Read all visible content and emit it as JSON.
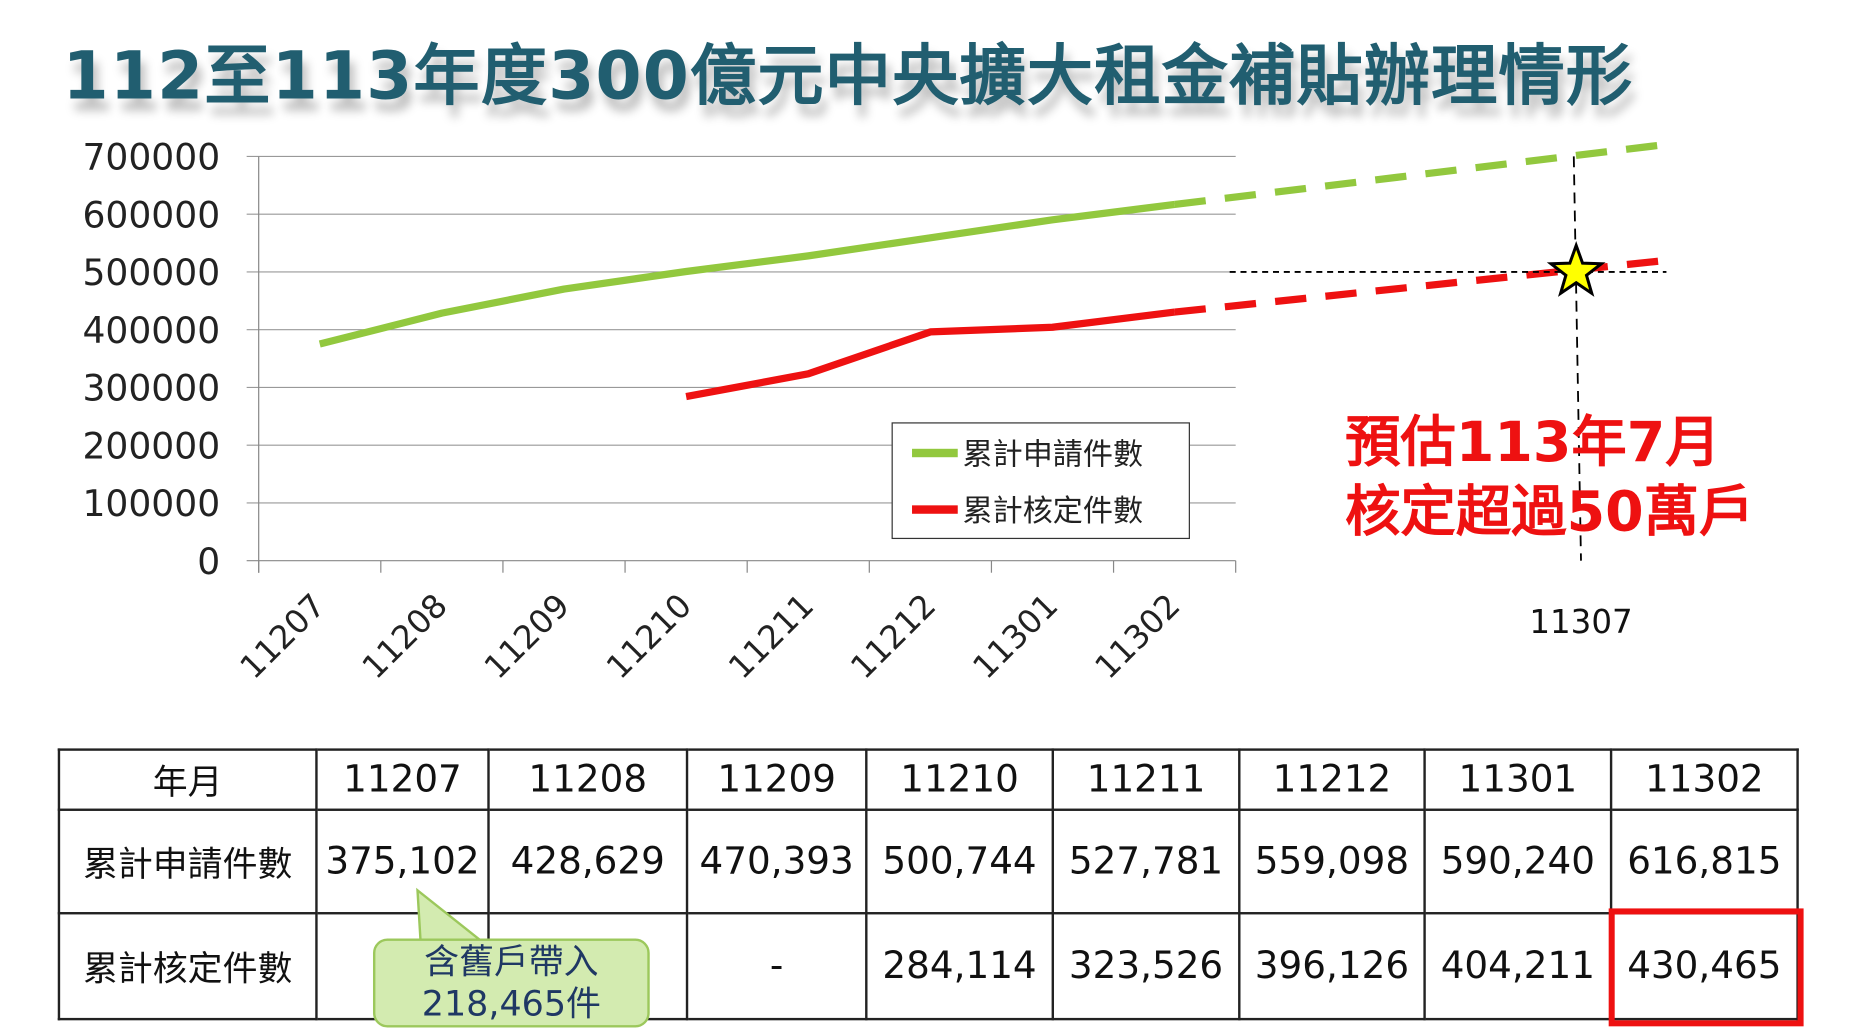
{
  "title": "112至113年度300億元中央擴大租金補貼辦理情形",
  "chart_data": {
    "type": "line",
    "title": "112至113年度300億元中央擴大租金補貼辦理情形",
    "categories": [
      "11207",
      "11208",
      "11209",
      "11210",
      "11211",
      "11212",
      "11301",
      "11302"
    ],
    "series": [
      {
        "name": "累計申請件數",
        "color": "#92C83E",
        "values": [
          375102,
          428629,
          470393,
          500744,
          527781,
          559098,
          590240,
          616815
        ]
      },
      {
        "name": "累計核定件數",
        "color": "#EE1111",
        "values": [
          null,
          null,
          null,
          284114,
          323526,
          396126,
          404211,
          430465
        ]
      }
    ],
    "ylim": [
      0,
      700000
    ],
    "yticks": [
      "0",
      "100000",
      "200000",
      "300000",
      "400000",
      "500000",
      "600000",
      "700000"
    ],
    "grid": true,
    "legend": "center-right",
    "projection": {
      "label": "11307",
      "target_value": 500000,
      "apply_projected_end": 720000,
      "approve_projected_end": 520000
    },
    "annotation": [
      "預估113年7月",
      "核定超過50萬戶"
    ]
  },
  "table": {
    "header": [
      "年月",
      "11207",
      "11208",
      "11209",
      "11210",
      "11211",
      "11212",
      "11301",
      "11302"
    ],
    "rows": [
      [
        "累計申請件數",
        "375,102",
        "428,629",
        "470,393",
        "500,744",
        "527,781",
        "559,098",
        "590,240",
        "616,815"
      ],
      [
        "累計核定件數",
        "",
        "",
        "-",
        "284,114",
        "323,526",
        "396,126",
        "404,211",
        "430,465"
      ]
    ]
  },
  "callout": [
    "含舊戶帶入",
    "218,465件"
  ]
}
